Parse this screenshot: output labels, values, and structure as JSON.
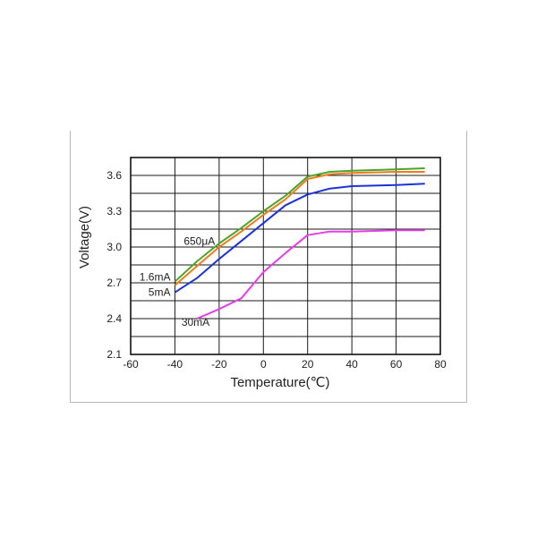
{
  "chart_data": {
    "type": "line",
    "xlabel": "Temperature(℃)",
    "ylabel": "Voltage(V)",
    "xlim": [
      -60,
      80
    ],
    "ylim": [
      2.1,
      3.75
    ],
    "x_ticks": [
      "-60",
      "-40",
      "-20",
      "0",
      "20",
      "40",
      "60",
      "80"
    ],
    "y_ticks": [
      "2.1",
      "2.4",
      "2.7",
      "3.0",
      "3.3",
      "3.6"
    ],
    "grid": true,
    "series": [
      {
        "name": "650μA",
        "color": "#4aa52a",
        "points": [
          [
            -40,
            2.71
          ],
          [
            -30,
            2.88
          ],
          [
            -20,
            3.03
          ],
          [
            -10,
            3.16
          ],
          [
            0,
            3.3
          ],
          [
            10,
            3.43
          ],
          [
            20,
            3.59
          ],
          [
            30,
            3.63
          ],
          [
            40,
            3.64
          ],
          [
            60,
            3.65
          ],
          [
            73,
            3.66
          ]
        ]
      },
      {
        "name": "1.6mA",
        "color": "#f07a1e",
        "points": [
          [
            -40,
            2.68
          ],
          [
            -30,
            2.84
          ],
          [
            -20,
            3.0
          ],
          [
            -10,
            3.13
          ],
          [
            0,
            3.27
          ],
          [
            10,
            3.4
          ],
          [
            20,
            3.57
          ],
          [
            30,
            3.61
          ],
          [
            40,
            3.62
          ],
          [
            60,
            3.63
          ],
          [
            73,
            3.63
          ]
        ]
      },
      {
        "name": "5mA",
        "color": "#1b33d6",
        "points": [
          [
            -40,
            2.62
          ],
          [
            -30,
            2.74
          ],
          [
            -20,
            2.9
          ],
          [
            -10,
            3.05
          ],
          [
            0,
            3.2
          ],
          [
            10,
            3.35
          ],
          [
            20,
            3.44
          ],
          [
            30,
            3.49
          ],
          [
            40,
            3.51
          ],
          [
            60,
            3.52
          ],
          [
            73,
            3.53
          ]
        ]
      },
      {
        "name": "30mA",
        "color": "#e23ee8",
        "points": [
          [
            -30,
            2.4
          ],
          [
            -20,
            2.48
          ],
          [
            -10,
            2.57
          ],
          [
            0,
            2.79
          ],
          [
            10,
            2.95
          ],
          [
            20,
            3.1
          ],
          [
            30,
            3.13
          ],
          [
            40,
            3.13
          ],
          [
            60,
            3.14
          ],
          [
            73,
            3.14
          ]
        ]
      }
    ]
  }
}
